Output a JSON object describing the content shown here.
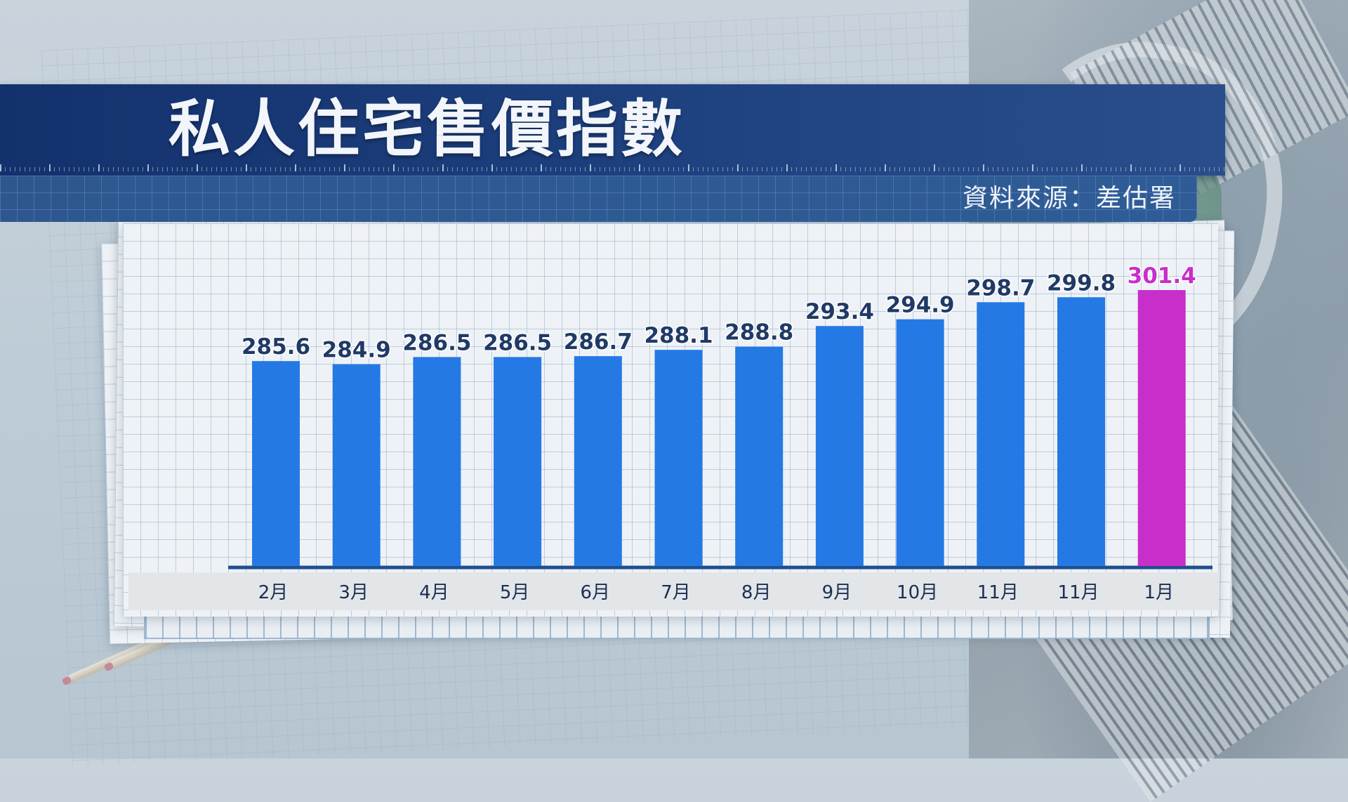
{
  "header": {
    "title": "私人住宅售價指數",
    "source": "資料來源：差估署"
  },
  "colors": {
    "bar": "#2479e4",
    "highlight_bar": "#c82ec9",
    "label": "#203a66",
    "highlight_label": "#c82ec9",
    "title_band": "#1a3a78"
  },
  "chart_data": {
    "type": "bar",
    "title": "私人住宅售價指數",
    "xlabel": "",
    "ylabel": "",
    "categories": [
      "2月",
      "3月",
      "4月",
      "5月",
      "6月",
      "7月",
      "8月",
      "9月",
      "10月",
      "11月",
      "11月",
      "1月"
    ],
    "values": [
      285.6,
      284.9,
      286.5,
      286.5,
      286.7,
      288.1,
      288.8,
      293.4,
      294.9,
      298.7,
      299.8,
      301.4
    ],
    "value_labels": [
      "285.6",
      "284.9",
      "286.5",
      "286.5",
      "286.7",
      "288.1",
      "288.8",
      "293.4",
      "294.9",
      "298.7",
      "299.8",
      "301.4"
    ],
    "highlight_index": 11,
    "ylim": [
      240,
      305
    ],
    "grid": false,
    "legend": "none"
  }
}
